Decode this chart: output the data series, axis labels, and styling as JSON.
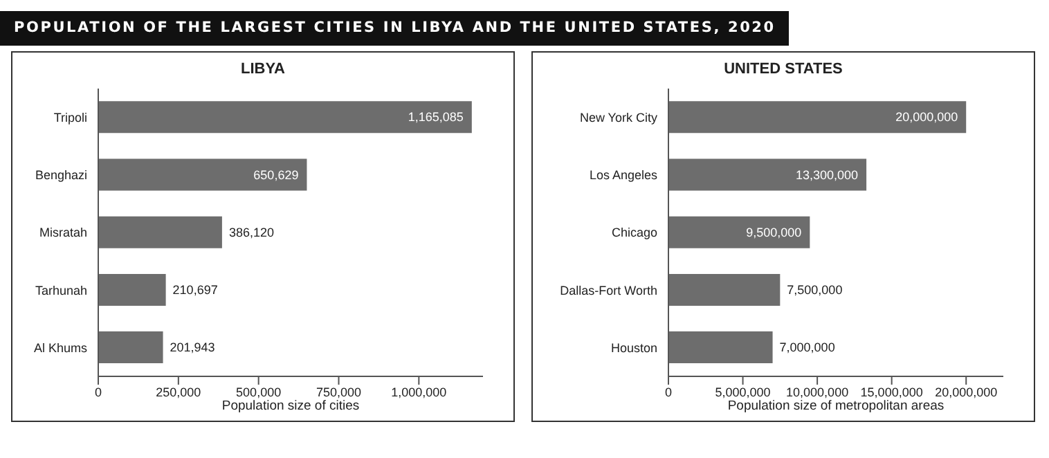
{
  "chart_data": [
    {
      "type": "bar",
      "orientation": "horizontal",
      "annotations": [
        "POPULATION OF THE LARGEST CITIES IN LIBYA AND THE UNITED STATES, 2020"
      ],
      "title": "LIBYA",
      "xlabel": "Population size of cities",
      "categories": [
        "Tripoli",
        "Benghazi",
        "Misratah",
        "Tarhunah",
        "Al Khums"
      ],
      "values": [
        1165085,
        650629,
        386120,
        210697,
        201943
      ],
      "value_labels": [
        "1,165,085",
        "650,629",
        "386,120",
        "210,697",
        "201,943"
      ],
      "color": "#6d6d6d",
      "xlim": [
        0,
        1200000
      ],
      "xticks": [
        0,
        {
          "value": 250000,
          "label": "250,000"
        },
        {
          "value": 500000,
          "label": "500,000"
        },
        {
          "value": 750000,
          "label": "750,000"
        },
        {
          "value": 1000000,
          "label": "1,000,000"
        }
      ]
    },
    {
      "type": "bar",
      "orientation": "horizontal",
      "title": "UNITED STATES",
      "xlabel": "Population size of metropolitan areas",
      "categories": [
        "New York City",
        "Los Angeles",
        "Chicago",
        "Dallas-Fort Worth",
        "Houston"
      ],
      "values": [
        20000000,
        13300000,
        9500000,
        7500000,
        7000000
      ],
      "value_labels": [
        "20,000,000",
        "13,300,000",
        "9,500,000",
        "7,500,000",
        "7,000,000"
      ],
      "color": "#6d6d6d",
      "xlim": [
        0,
        22500000
      ],
      "xticks": [
        0,
        {
          "value": 5000000,
          "label": "5,000,000"
        },
        {
          "value": 10000000,
          "label": "10,000,000"
        },
        {
          "value": 15000000,
          "label": "15,000,000"
        },
        {
          "value": 20000000,
          "label": "20,000,000"
        }
      ]
    }
  ]
}
